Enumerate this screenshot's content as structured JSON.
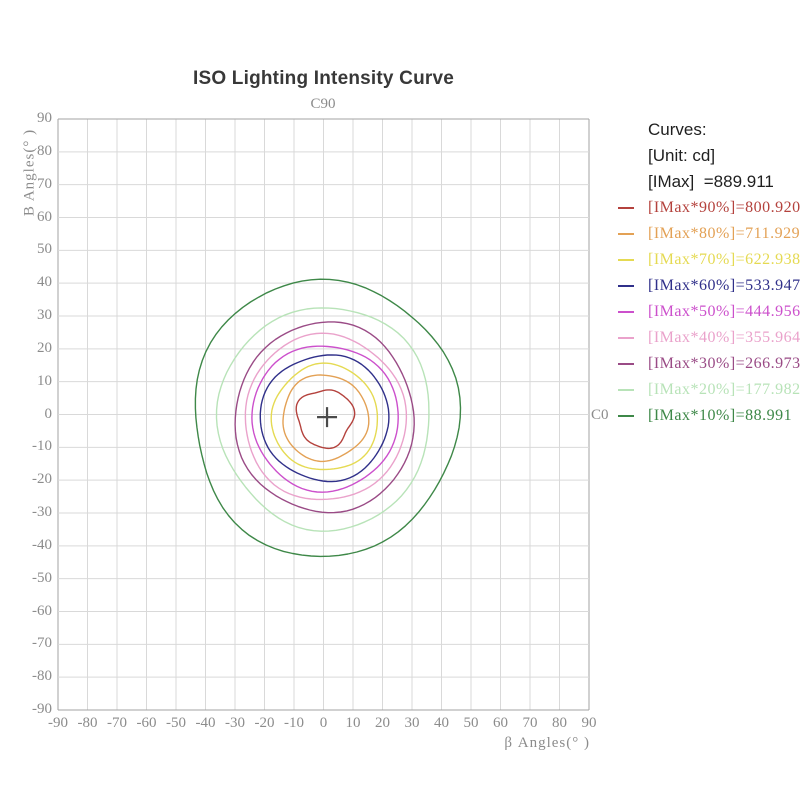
{
  "title": "ISO Lighting Intensity Curve",
  "plot": {
    "top_label": "C90",
    "right_label": "C0",
    "x_axis": {
      "label": "β Angles(° )",
      "ticks": [
        -90,
        -80,
        -70,
        -60,
        -50,
        -40,
        -30,
        -20,
        -10,
        0,
        10,
        20,
        30,
        40,
        50,
        60,
        70,
        80,
        90
      ]
    },
    "y_axis": {
      "label": "B Angles(° )",
      "ticks": [
        90,
        80,
        70,
        60,
        50,
        40,
        30,
        20,
        10,
        0,
        -10,
        -20,
        -30,
        -40,
        -50,
        -60,
        -70,
        -80,
        -90
      ]
    }
  },
  "legend": {
    "heading": "Curves:",
    "unit_line": "[Unit: cd]",
    "imax_line": "[IMax]  =889.911",
    "entries": [
      {
        "label": "[IMax*90%]=800.920",
        "color": "#b4423d"
      },
      {
        "label": "[IMax*80%]=711.929",
        "color": "#e3a155"
      },
      {
        "label": "[IMax*70%]=622.938",
        "color": "#e5da52"
      },
      {
        "label": "[IMax*60%]=533.947",
        "color": "#30308a"
      },
      {
        "label": "[IMax*50%]=444.956",
        "color": "#cc50cc"
      },
      {
        "label": "[IMax*40%]=355.964",
        "color": "#eaa2cb"
      },
      {
        "label": "[IMax*30%]=266.973",
        "color": "#9a4b86"
      },
      {
        "label": "[IMax*20%]=177.982",
        "color": "#b8e3b8"
      },
      {
        "label": "[IMax*10%]=88.991",
        "color": "#3e8848"
      }
    ]
  },
  "chart_data": {
    "type": "contour",
    "title": "ISO Lighting Intensity Curve",
    "plane_labels": {
      "top": "C90",
      "right": "C0"
    },
    "xlabel": "β Angles(°)",
    "ylabel": "B Angles(°)",
    "unit": "cd",
    "xlim": [
      -90,
      90
    ],
    "ylim": [
      -90,
      90
    ],
    "tick_step": 10,
    "grid": true,
    "legend_position": "right",
    "imax_cd": 889.911,
    "center_deg": {
      "x": 0.5,
      "y": -1
    },
    "cross_marker_deg": {
      "x": 1.2,
      "y": -0.8
    },
    "contours": [
      {
        "percent_of_imax": 90,
        "value_cd": 800.92,
        "color": "#b4423d",
        "rx_deg": 9.5,
        "ry_deg": 8.8,
        "wobble": 0.07
      },
      {
        "percent_of_imax": 80,
        "value_cd": 711.929,
        "color": "#e3a155",
        "rx_deg": 14.5,
        "ry_deg": 13.1,
        "wobble": 0.025
      },
      {
        "percent_of_imax": 70,
        "value_cd": 622.938,
        "color": "#e5da52",
        "rx_deg": 18.0,
        "ry_deg": 16.2,
        "wobble": 0.02
      },
      {
        "percent_of_imax": 60,
        "value_cd": 533.947,
        "color": "#30308a",
        "rx_deg": 21.8,
        "ry_deg": 19.2,
        "wobble": 0.018
      },
      {
        "percent_of_imax": 50,
        "value_cd": 444.956,
        "color": "#cc50cc",
        "rx_deg": 24.8,
        "ry_deg": 22.2,
        "wobble": 0.015
      },
      {
        "percent_of_imax": 40,
        "value_cd": 355.964,
        "color": "#eaa2cb",
        "rx_deg": 27.3,
        "ry_deg": 25.3,
        "wobble": 0.015
      },
      {
        "percent_of_imax": 30,
        "value_cd": 266.973,
        "color": "#9a4b86",
        "rx_deg": 30.3,
        "ry_deg": 29.0,
        "wobble": 0.015
      },
      {
        "percent_of_imax": 20,
        "value_cd": 177.982,
        "color": "#b8e3b8",
        "rx_deg": 36.0,
        "ry_deg": 34.0,
        "wobble": 0.018
      },
      {
        "percent_of_imax": 10,
        "value_cd": 88.991,
        "color": "#3e8848",
        "rx_deg": 44.8,
        "ry_deg": 42.2,
        "wobble": 0.02
      }
    ],
    "style_colors": {
      "grid": "#d9d9d9",
      "spine": "#a3a3a3",
      "tick_text": "#8c8c8c",
      "cross": "#4a4a4a"
    }
  }
}
